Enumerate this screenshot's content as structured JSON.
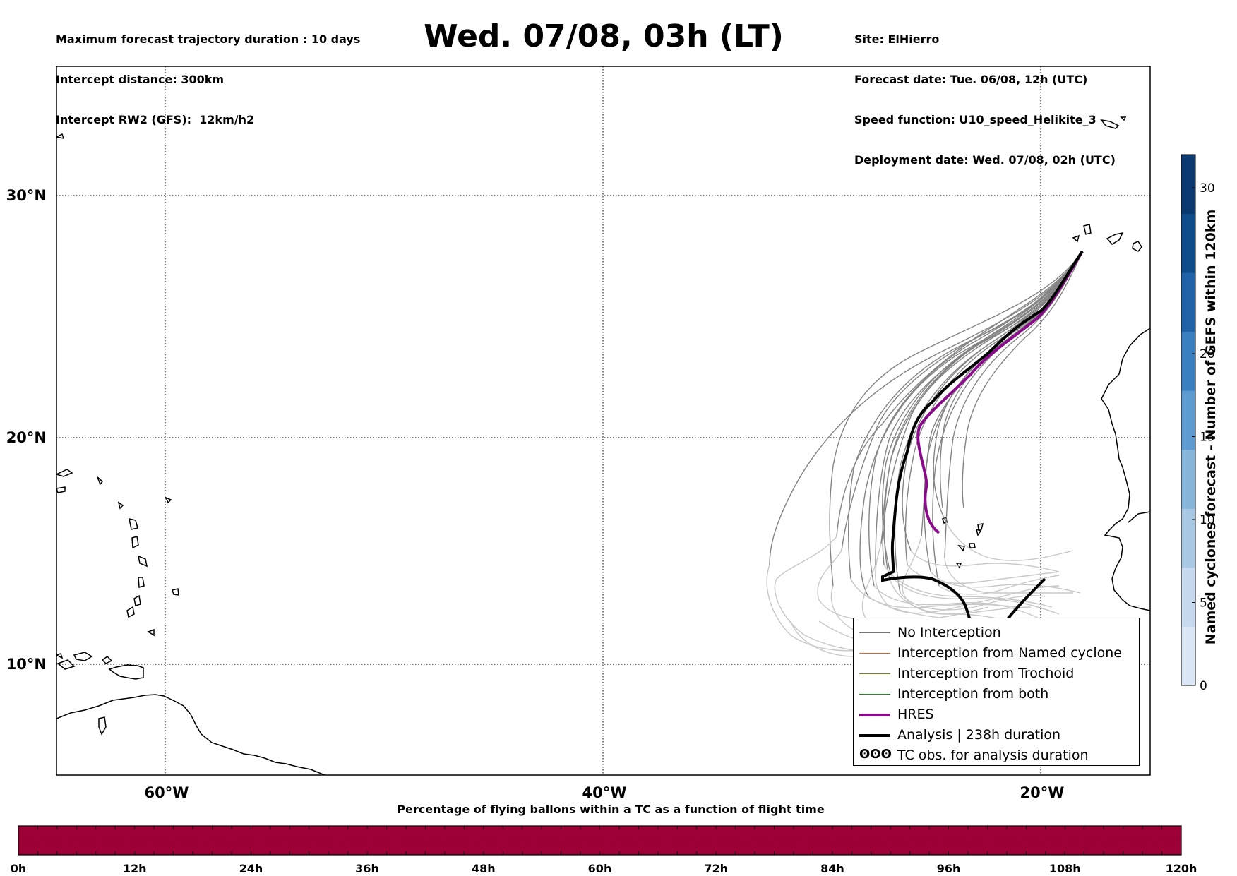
{
  "header_left": [
    "Maximum forecast trajectory duration : 10 days",
    "Intercept distance: 300km",
    "Intercept RW2 (GFS):  12km/h2"
  ],
  "title": "Wed. 07/08, 03h (LT)",
  "header_right": [
    "Site: ElHierro",
    "Forecast date: Tue. 06/08, 12h (UTC)",
    "Speed function: U10_speed_Helikite_3",
    "Deployment date: Wed. 07/08, 02h (UTC)"
  ],
  "map": {
    "lat_labels": [
      "30°N",
      "20°N",
      "10°N"
    ],
    "lon_labels": [
      "60°W",
      "40°W",
      "20°W"
    ],
    "grid": "dotted"
  },
  "legend": [
    {
      "label": "No Interception",
      "color": "#777777",
      "width": 1.5
    },
    {
      "label": "Interception from Named cyclone",
      "color": "#e8602c",
      "width": 1.5
    },
    {
      "label": "Interception from Trochoid",
      "color": "#808020",
      "width": 1.5
    },
    {
      "label": "Interception from both",
      "color": "#2a8a2a",
      "width": 1.5
    },
    {
      "label": "HRES",
      "color": "#8b0a8b",
      "width": 4
    },
    {
      "label": "Analysis | 238h duration",
      "color": "#000000",
      "width": 4
    },
    {
      "label": "TC obs. for analysis duration",
      "color": "#000000",
      "symbol": "cyclone-glyphs"
    }
  ],
  "colorbar": {
    "label": "Named cyclones forecast - Number of GEFS within 120km",
    "ticks": [
      "0",
      "5",
      "10",
      "15",
      "20",
      "30"
    ],
    "colors": [
      "#dbe7f5",
      "#c6d9ef",
      "#a8c8e4",
      "#86b5dc",
      "#5d9bd0",
      "#3a80c0",
      "#2063a8",
      "#0f4c8c",
      "#0a3a70"
    ]
  },
  "percent_bar": {
    "title": "Percentage of flying ballons within a TC as a function of flight time",
    "ticks": [
      "0h",
      "12h",
      "24h",
      "36h",
      "48h",
      "60h",
      "72h",
      "84h",
      "96h",
      "108h",
      "120h"
    ],
    "fill_color": "#9c0036"
  }
}
